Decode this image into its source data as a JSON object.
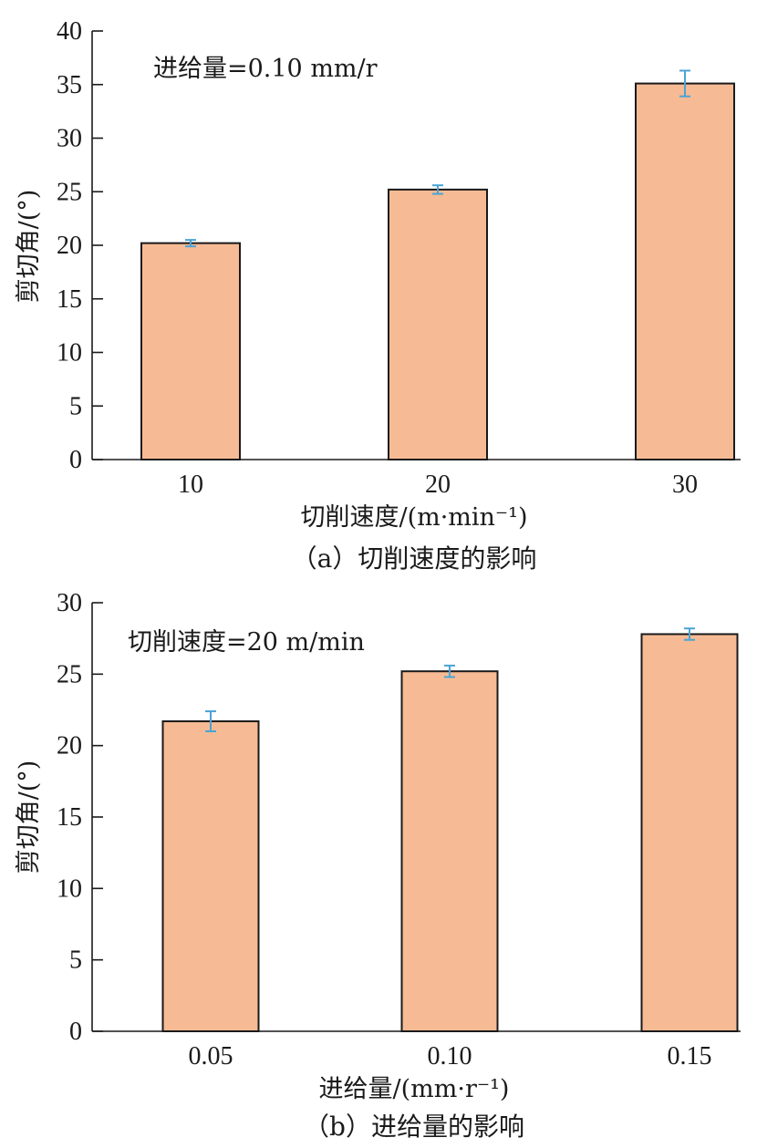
{
  "colors": {
    "bar_fill": "#F6BB94",
    "bar_stroke": "#1a1a1a",
    "error_bar": "#4BA3D6",
    "axis": "#1a1a1a"
  },
  "chart_data": [
    {
      "type": "bar",
      "annotation": "进给量=0.10 mm/r",
      "categories": [
        "10",
        "20",
        "30"
      ],
      "values": [
        20.2,
        25.2,
        35.1
      ],
      "errors": [
        0.3,
        0.4,
        1.2
      ],
      "ylabel": "剪切角/(°)",
      "xlabel": "切削速度/(m·min⁻¹)",
      "caption": "（a）切削速度的影响",
      "ylim": [
        0,
        40
      ],
      "yticks": [
        "0",
        "5",
        "10",
        "15",
        "20",
        "25",
        "30",
        "35",
        "40"
      ],
      "grid": false
    },
    {
      "type": "bar",
      "annotation": "切削速度=20 m/min",
      "categories": [
        "0.05",
        "0.10",
        "0.15"
      ],
      "values": [
        21.7,
        25.2,
        27.8
      ],
      "errors": [
        0.7,
        0.4,
        0.4
      ],
      "ylabel": "剪切角/(°)",
      "xlabel": "进给量/(mm·r⁻¹)",
      "caption": "（b）进给量的影响",
      "ylim": [
        0,
        30
      ],
      "yticks": [
        "0",
        "5",
        "10",
        "15",
        "20",
        "25",
        "30"
      ],
      "grid": false
    }
  ]
}
